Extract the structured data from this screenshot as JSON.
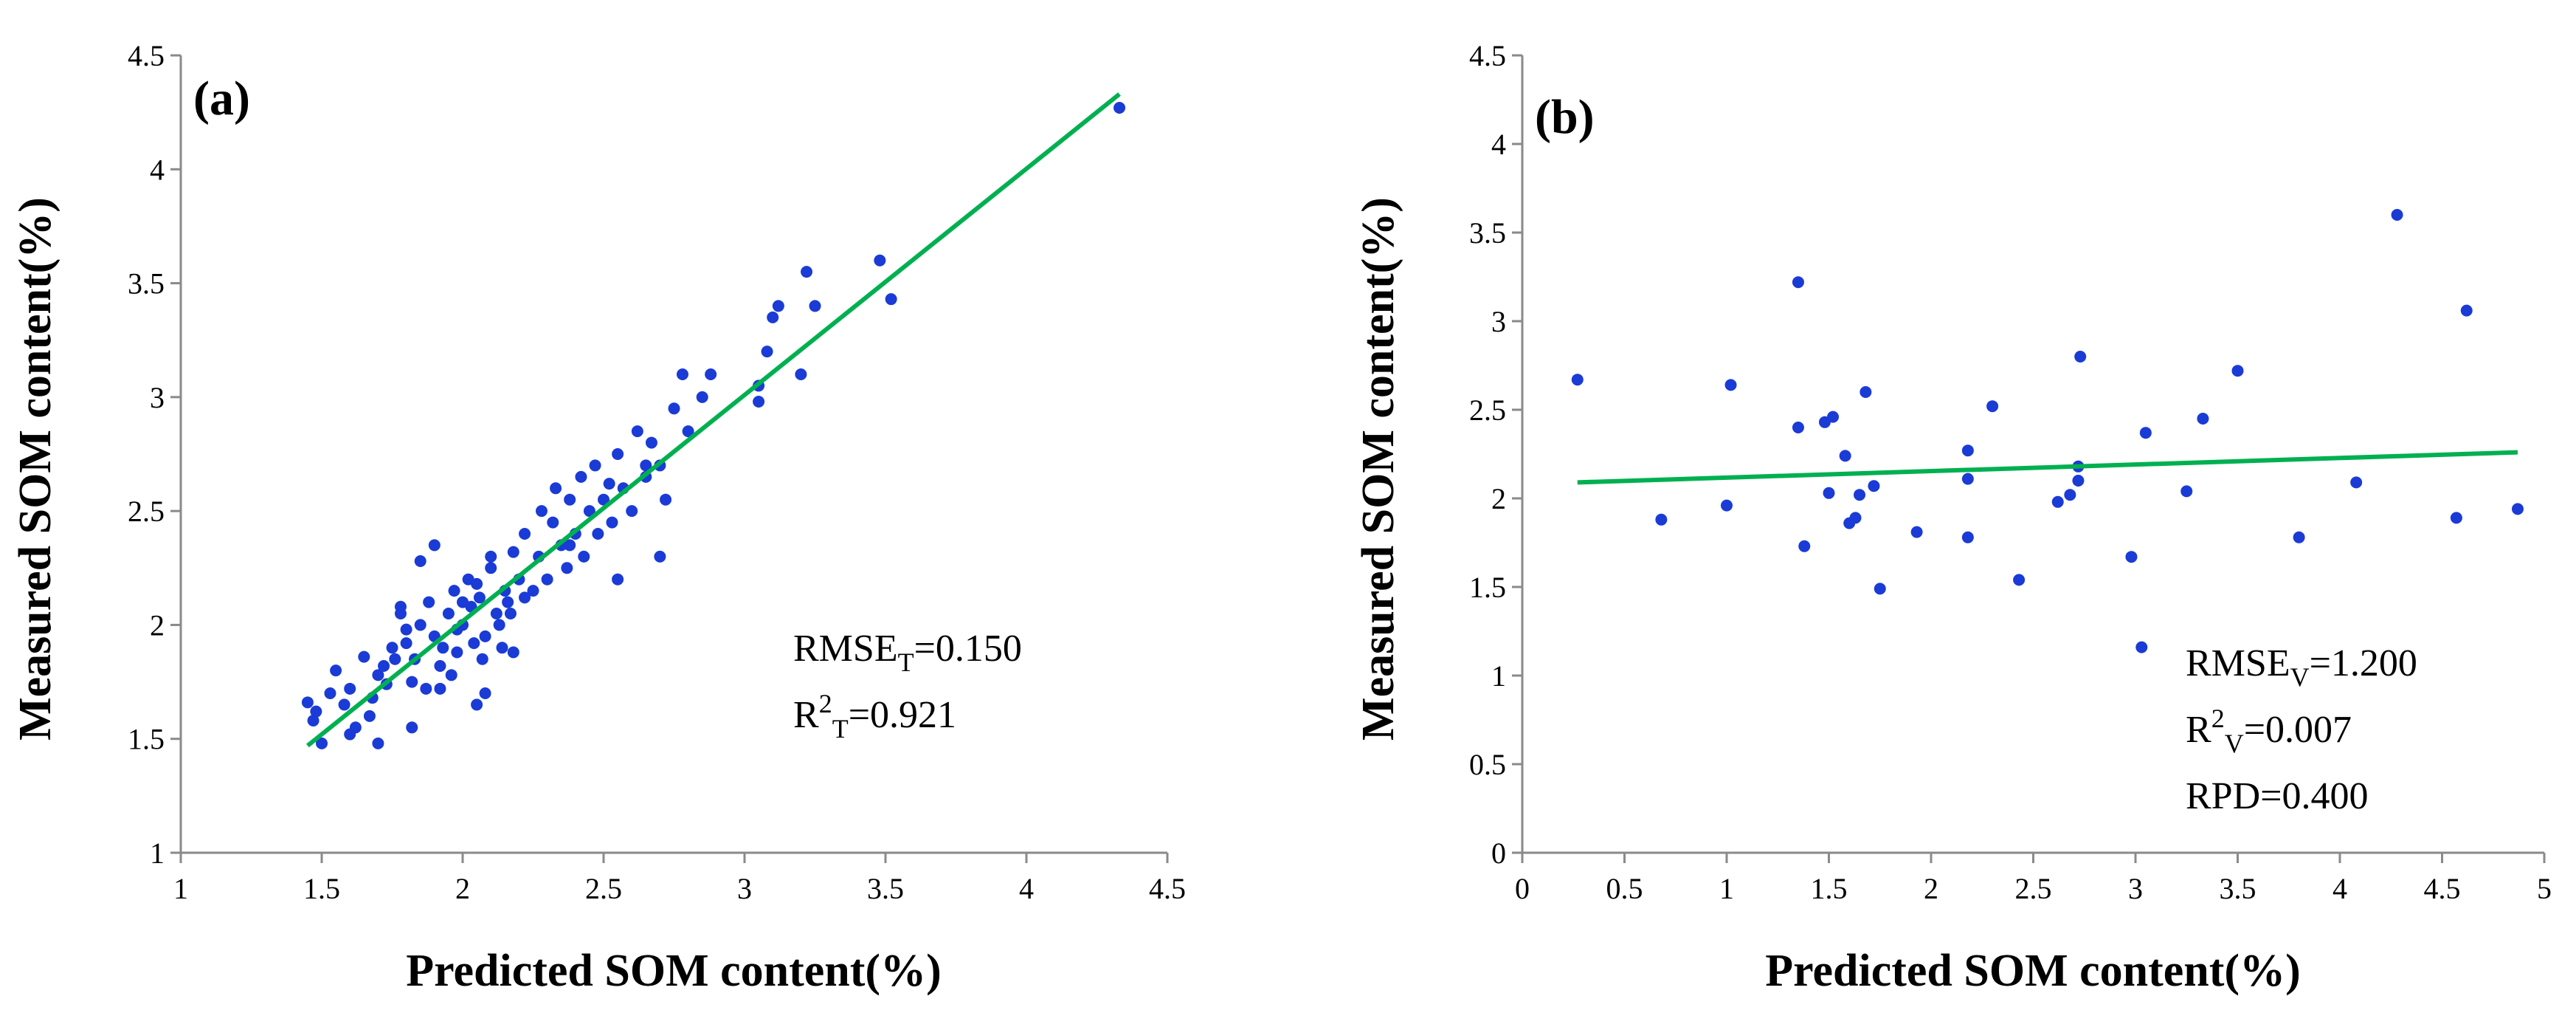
{
  "chart_data": [
    {
      "type": "scatter",
      "panel": "(a)",
      "xlabel": "Predicted SOM content(%)",
      "ylabel": "Measured SOM content(%)",
      "xlim": [
        1,
        4.5
      ],
      "ylim": [
        1,
        4.5
      ],
      "xticks": [
        "1",
        "1.5",
        "2",
        "2.5",
        "3",
        "3.5",
        "4",
        "4.5"
      ],
      "yticks": [
        "1",
        "1.5",
        "2",
        "2.5",
        "3",
        "3.5",
        "4",
        "4.5"
      ],
      "grid": false,
      "stats": [
        {
          "main": "RMSE",
          "sub": "T",
          "rest": "=0.150"
        },
        {
          "main": "R",
          "sup": "2",
          "sub": "T",
          "rest": "=0.921"
        }
      ],
      "point_color": "#1a3bd6",
      "fit_color": "#00b050",
      "fit": {
        "x": [
          1.45,
          4.33
        ],
        "y": [
          1.47,
          4.33
        ]
      },
      "points": {
        "x": [
          1.45,
          1.47,
          1.5,
          1.53,
          1.48,
          1.55,
          1.58,
          1.6,
          1.62,
          1.65,
          1.67,
          1.7,
          1.68,
          1.72,
          1.75,
          1.73,
          1.78,
          1.76,
          1.8,
          1.82,
          1.8,
          1.85,
          1.83,
          1.87,
          1.88,
          1.9,
          1.85,
          1.92,
          1.9,
          1.95,
          1.93,
          1.97,
          1.98,
          2.0,
          1.96,
          2.02,
          2.0,
          2.03,
          2.05,
          2.04,
          2.06,
          2.08,
          2.1,
          2.07,
          2.12,
          2.1,
          2.13,
          2.15,
          2.14,
          2.16,
          2.18,
          2.2,
          2.17,
          2.22,
          2.25,
          2.27,
          2.28,
          2.3,
          2.32,
          2.35,
          2.33,
          2.37,
          2.38,
          2.4,
          2.42,
          2.43,
          2.45,
          2.47,
          2.5,
          2.48,
          2.52,
          2.53,
          2.55,
          2.57,
          2.6,
          2.62,
          2.65,
          2.67,
          2.7,
          2.72,
          2.75,
          2.78,
          2.8,
          2.85,
          2.88,
          2.65,
          2.7,
          1.92,
          2.05,
          2.18,
          1.7,
          1.6,
          3.05,
          3.05,
          3.1,
          3.08,
          3.12,
          3.2,
          3.22,
          3.25,
          3.48,
          3.52,
          4.33,
          1.78,
          1.82,
          1.98,
          2.08,
          2.22,
          2.38,
          2.55
        ],
        "y": [
          1.66,
          1.58,
          1.48,
          1.7,
          1.62,
          1.8,
          1.65,
          1.72,
          1.55,
          1.86,
          1.6,
          1.78,
          1.68,
          1.82,
          1.9,
          1.74,
          2.05,
          1.85,
          1.98,
          1.75,
          1.92,
          2.0,
          1.85,
          1.72,
          2.1,
          1.95,
          2.28,
          1.82,
          2.35,
          2.05,
          1.9,
          2.15,
          1.98,
          2.1,
          1.78,
          2.2,
          2.0,
          2.08,
          2.18,
          1.92,
          2.12,
          1.95,
          2.25,
          1.85,
          2.05,
          2.3,
          2.0,
          2.15,
          1.9,
          2.1,
          2.32,
          2.2,
          2.05,
          2.4,
          2.15,
          2.3,
          2.5,
          2.2,
          2.45,
          2.35,
          2.6,
          2.25,
          2.55,
          2.4,
          2.65,
          2.3,
          2.5,
          2.7,
          2.55,
          2.4,
          2.62,
          2.45,
          2.75,
          2.6,
          2.5,
          2.85,
          2.65,
          2.8,
          2.7,
          2.55,
          2.95,
          3.1,
          2.85,
          3.0,
          3.1,
          2.7,
          2.3,
          1.72,
          1.65,
          1.88,
          1.48,
          1.52,
          3.05,
          2.98,
          3.35,
          3.2,
          3.4,
          3.1,
          3.55,
          3.4,
          3.6,
          3.43,
          4.27,
          2.08,
          1.55,
          1.88,
          1.7,
          2.12,
          2.35,
          2.2
        ]
      }
    },
    {
      "type": "scatter",
      "panel": "(b)",
      "xlabel": "Predicted SOM content(%)",
      "ylabel": "Measured SOM content(%)",
      "xlim": [
        0,
        5
      ],
      "ylim": [
        0,
        4.5
      ],
      "xticks": [
        "0",
        "0.5",
        "1",
        "1.5",
        "2",
        "2.5",
        "3",
        "3.5",
        "4",
        "4.5",
        "5"
      ],
      "yticks": [
        "0",
        "0.5",
        "1",
        "1.5",
        "2",
        "2.5",
        "3",
        "3.5",
        "4",
        "4.5"
      ],
      "grid": false,
      "stats": [
        {
          "main": "RMSE",
          "sub": "V",
          "rest": "=1.200"
        },
        {
          "main": "R",
          "sup": "2",
          "sub": "V",
          "rest": "=0.007"
        },
        {
          "main": "RPD",
          "rest": "=0.400"
        }
      ],
      "point_color": "#1a3bd6",
      "fit_color": "#00b050",
      "fit": {
        "x": [
          0.27,
          4.87
        ],
        "y": [
          2.09,
          2.26
        ]
      },
      "points": {
        "x": [
          0.27,
          0.68,
          1.0,
          1.02,
          1.35,
          1.35,
          1.38,
          1.48,
          1.5,
          1.52,
          1.58,
          1.6,
          1.63,
          1.65,
          1.68,
          1.72,
          1.75,
          1.93,
          2.18,
          2.18,
          2.18,
          2.3,
          2.43,
          2.62,
          2.68,
          2.72,
          2.72,
          2.73,
          2.98,
          3.03,
          3.05,
          3.25,
          3.33,
          3.5,
          3.8,
          4.08,
          4.28,
          4.57,
          4.62,
          4.87
        ],
        "y": [
          2.67,
          1.88,
          1.96,
          2.64,
          2.4,
          3.22,
          1.73,
          2.43,
          2.03,
          2.46,
          2.24,
          1.86,
          1.89,
          2.02,
          2.6,
          2.07,
          1.49,
          1.81,
          1.78,
          2.11,
          2.27,
          2.52,
          1.54,
          1.98,
          2.02,
          2.1,
          2.18,
          2.8,
          1.67,
          1.16,
          2.37,
          2.04,
          2.45,
          2.72,
          1.78,
          2.09,
          3.6,
          1.89,
          3.06,
          1.94
        ]
      }
    }
  ]
}
